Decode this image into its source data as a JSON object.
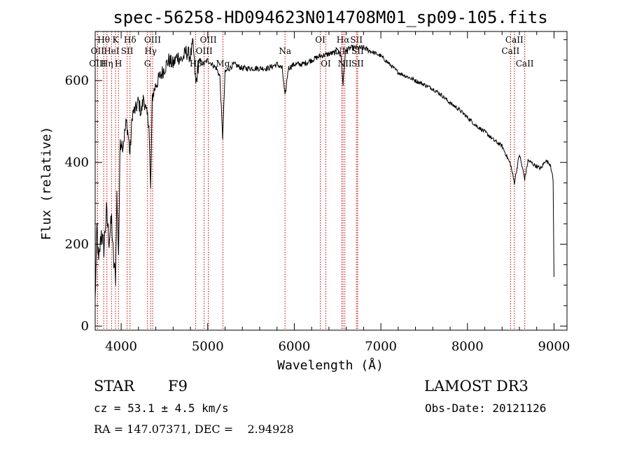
{
  "chart_data": {
    "type": "line",
    "title": "spec-56258-HD094623N014708M01_sp09-105.fits",
    "xlabel": "Wavelength (Å)",
    "ylabel": "Flux (relative)",
    "xlim": [
      3700,
      9150
    ],
    "ylim": [
      -10,
      720
    ],
    "x_ticks": [
      4000,
      5000,
      6000,
      7000,
      8000,
      9000
    ],
    "x_tick_labels": [
      "4000",
      "5000",
      "6000",
      "7000",
      "8000",
      "9000"
    ],
    "y_ticks": [
      0,
      200,
      400,
      600
    ],
    "y_tick_labels": [
      "0",
      "200",
      "400",
      "600"
    ],
    "series": [
      {
        "name": "flux",
        "anchors": [
          [
            3700,
            60
          ],
          [
            3720,
            240
          ],
          [
            3740,
            150
          ],
          [
            3770,
            230
          ],
          [
            3800,
            190
          ],
          [
            3830,
            280
          ],
          [
            3860,
            210
          ],
          [
            3890,
            260
          ],
          [
            3910,
            160
          ],
          [
            3935,
            120
          ],
          [
            3950,
            320
          ],
          [
            3970,
            180
          ],
          [
            3990,
            460
          ],
          [
            4020,
            440
          ],
          [
            4060,
            500
          ],
          [
            4080,
            470
          ],
          [
            4102,
            420
          ],
          [
            4130,
            520
          ],
          [
            4170,
            530
          ],
          [
            4200,
            550
          ],
          [
            4230,
            520
          ],
          [
            4260,
            560
          ],
          [
            4290,
            520
          ],
          [
            4320,
            500
          ],
          [
            4340,
            330
          ],
          [
            4360,
            560
          ],
          [
            4400,
            590
          ],
          [
            4450,
            610
          ],
          [
            4500,
            630
          ],
          [
            4550,
            650
          ],
          [
            4600,
            640
          ],
          [
            4650,
            660
          ],
          [
            4700,
            650
          ],
          [
            4750,
            670
          ],
          [
            4800,
            660
          ],
          [
            4830,
            690
          ],
          [
            4862,
            590
          ],
          [
            4900,
            650
          ],
          [
            4950,
            640
          ],
          [
            5000,
            650
          ],
          [
            5050,
            640
          ],
          [
            5100,
            630
          ],
          [
            5140,
            610
          ],
          [
            5172,
            460
          ],
          [
            5200,
            620
          ],
          [
            5300,
            640
          ],
          [
            5400,
            630
          ],
          [
            5500,
            630
          ],
          [
            5600,
            630
          ],
          [
            5700,
            630
          ],
          [
            5800,
            640
          ],
          [
            5860,
            630
          ],
          [
            5893,
            560
          ],
          [
            5930,
            630
          ],
          [
            6000,
            640
          ],
          [
            6100,
            640
          ],
          [
            6200,
            650
          ],
          [
            6300,
            660
          ],
          [
            6400,
            665
          ],
          [
            6500,
            670
          ],
          [
            6540,
            660
          ],
          [
            6563,
            590
          ],
          [
            6590,
            670
          ],
          [
            6650,
            680
          ],
          [
            6700,
            680
          ],
          [
            6800,
            680
          ],
          [
            6900,
            670
          ],
          [
            7000,
            660
          ],
          [
            7100,
            640
          ],
          [
            7200,
            620
          ],
          [
            7300,
            610
          ],
          [
            7400,
            600
          ],
          [
            7500,
            590
          ],
          [
            7600,
            580
          ],
          [
            7700,
            565
          ],
          [
            7800,
            545
          ],
          [
            7900,
            530
          ],
          [
            8000,
            510
          ],
          [
            8100,
            490
          ],
          [
            8200,
            475
          ],
          [
            8300,
            455
          ],
          [
            8400,
            440
          ],
          [
            8498,
            395
          ],
          [
            8542,
            350
          ],
          [
            8600,
            420
          ],
          [
            8662,
            360
          ],
          [
            8700,
            405
          ],
          [
            8800,
            390
          ],
          [
            8850,
            385
          ],
          [
            8900,
            405
          ],
          [
            8960,
            395
          ],
          [
            8990,
            355
          ],
          [
            9000,
            120
          ]
        ]
      }
    ],
    "spectral_lines": [
      {
        "label": "Hθ",
        "wavelength": 3798,
        "row": 1
      },
      {
        "label": "OII",
        "wavelength": 3727,
        "row": 2
      },
      {
        "label": "OIII",
        "wavelength": 3727,
        "row": 3
      },
      {
        "label": "K",
        "wavelength": 3934,
        "row": 1
      },
      {
        "label": "HeI",
        "wavelength": 3889,
        "row": 2
      },
      {
        "label": "Hη",
        "wavelength": 3835,
        "row": 3
      },
      {
        "label": "SII",
        "wavelength": 4069,
        "row": 2
      },
      {
        "label": "H",
        "wavelength": 3969,
        "row": 3
      },
      {
        "label": "Hδ",
        "wavelength": 4102,
        "row": 1
      },
      {
        "label": "OIII",
        "wavelength": 4363,
        "row": 1
      },
      {
        "label": "Hγ",
        "wavelength": 4340,
        "row": 2
      },
      {
        "label": "G",
        "wavelength": 4304,
        "row": 3
      },
      {
        "label": "OIII",
        "wavelength": 5007,
        "row": 1
      },
      {
        "label": "OIII",
        "wavelength": 4959,
        "row": 2
      },
      {
        "label": "Hβ",
        "wavelength": 4861,
        "row": 3
      },
      {
        "label": "Mg",
        "wavelength": 5175,
        "row": 3
      },
      {
        "label": "Na",
        "wavelength": 5893,
        "row": 2
      },
      {
        "label": "OI",
        "wavelength": 6300,
        "row": 1
      },
      {
        "label": "OI",
        "wavelength": 6364,
        "row": 3
      },
      {
        "label": "Hα",
        "wavelength": 6563,
        "row": 1
      },
      {
        "label": "NII",
        "wavelength": 6548,
        "row": 2
      },
      {
        "label": "NII",
        "wavelength": 6584,
        "row": 3
      },
      {
        "label": "SII",
        "wavelength": 6717,
        "row": 1
      },
      {
        "label": "SII",
        "wavelength": 6731,
        "row": 2
      },
      {
        "label": "SII",
        "wavelength": 6731,
        "row": 3
      },
      {
        "label": "CaII",
        "wavelength": 8542,
        "row": 1
      },
      {
        "label": "CaII",
        "wavelength": 8498,
        "row": 2
      },
      {
        "label": "CaII",
        "wavelength": 8662,
        "row": 3
      }
    ],
    "colors": {
      "spectrum": "#000000",
      "lines": "#cc0000",
      "axes": "#000000"
    }
  },
  "info": {
    "object_class": "STAR",
    "subclass": "F9",
    "survey": "LAMOST DR3",
    "redshift": "cz = 53.1 ± 4.5 km/s",
    "obs_date": "Obs-Date: 20121126",
    "coords": "RA = 147.07371, DEC =    2.94928"
  }
}
